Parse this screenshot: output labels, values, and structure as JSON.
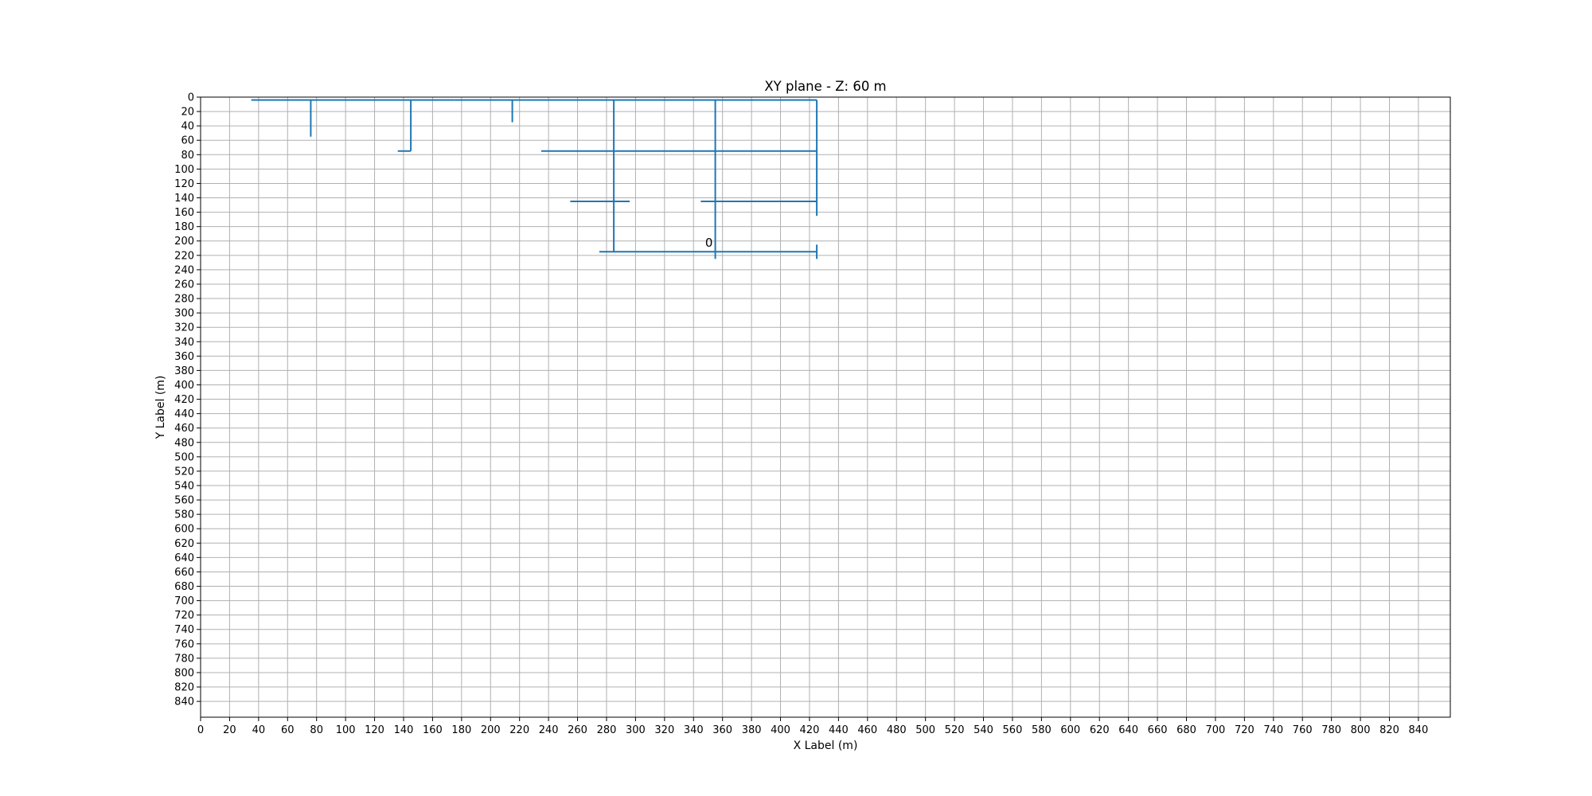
{
  "chart_data": {
    "type": "line",
    "title": "XY plane - Z: 60 m",
    "xlabel": "X Label (m)",
    "ylabel": "Y Label (m)",
    "xlim": [
      0,
      862
    ],
    "ylim": [
      862,
      0
    ],
    "y_inverted": true,
    "grid": true,
    "x_ticks": [
      0,
      20,
      40,
      60,
      80,
      100,
      120,
      140,
      160,
      180,
      200,
      220,
      240,
      260,
      280,
      300,
      320,
      340,
      360,
      380,
      400,
      420,
      440,
      460,
      480,
      500,
      520,
      540,
      560,
      580,
      600,
      620,
      640,
      660,
      680,
      700,
      720,
      740,
      760,
      780,
      800,
      820,
      840
    ],
    "y_ticks": [
      0,
      20,
      40,
      60,
      80,
      100,
      120,
      140,
      160,
      180,
      200,
      220,
      240,
      260,
      280,
      300,
      320,
      340,
      360,
      380,
      400,
      420,
      440,
      460,
      480,
      500,
      520,
      540,
      560,
      580,
      600,
      620,
      640,
      660,
      680,
      700,
      720,
      740,
      760,
      780,
      800,
      820,
      840
    ],
    "line_color": "#1f77b4",
    "segments": [
      {
        "x": [
          35,
          175
        ],
        "y": [
          4,
          4
        ]
      },
      {
        "x": [
          175,
          425
        ],
        "y": [
          4,
          4
        ]
      },
      {
        "x": [
          76,
          76
        ],
        "y": [
          4,
          55
        ]
      },
      {
        "x": [
          145,
          145
        ],
        "y": [
          4,
          75
        ]
      },
      {
        "x": [
          136,
          145
        ],
        "y": [
          75,
          75
        ]
      },
      {
        "x": [
          215,
          215
        ],
        "y": [
          4,
          35
        ]
      },
      {
        "x": [
          285,
          285
        ],
        "y": [
          4,
          215
        ]
      },
      {
        "x": [
          355,
          355
        ],
        "y": [
          4,
          225
        ]
      },
      {
        "x": [
          425,
          425
        ],
        "y": [
          4,
          165
        ]
      },
      {
        "x": [
          235,
          425
        ],
        "y": [
          75,
          75
        ]
      },
      {
        "x": [
          255,
          296
        ],
        "y": [
          145,
          145
        ]
      },
      {
        "x": [
          345,
          425
        ],
        "y": [
          145,
          145
        ]
      },
      {
        "x": [
          275,
          425
        ],
        "y": [
          215,
          215
        ]
      },
      {
        "x": [
          425,
          425
        ],
        "y": [
          205,
          225
        ]
      }
    ],
    "annotations": [
      {
        "text": "0",
        "x": 348,
        "y": 208
      }
    ]
  }
}
